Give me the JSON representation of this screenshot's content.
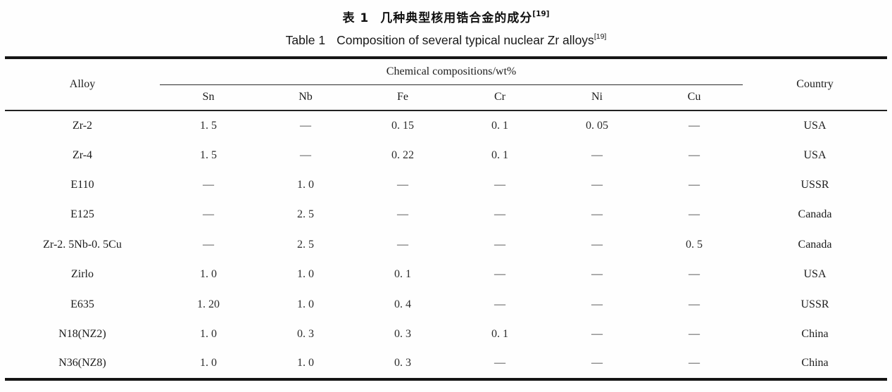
{
  "captions": {
    "chinese": {
      "label": "表 1",
      "text": "几种典型核用锆合金的成分",
      "sup": "[19]"
    },
    "english": {
      "label": "Table 1",
      "text": "Composition of several typical nuclear Zr alloys",
      "sup": "[19]"
    }
  },
  "table": {
    "header": {
      "alloy": "Alloy",
      "group": "Chemical compositions/wt%",
      "elements": [
        "Sn",
        "Nb",
        "Fe",
        "Cr",
        "Ni",
        "Cu"
      ],
      "country": "Country"
    },
    "rows": [
      {
        "alloy": "Zr-2",
        "values": [
          "1. 5",
          "—",
          "0. 15",
          "0. 1",
          "0. 05",
          "—"
        ],
        "country": "USA"
      },
      {
        "alloy": "Zr-4",
        "values": [
          "1. 5",
          "—",
          "0. 22",
          "0. 1",
          "—",
          "—"
        ],
        "country": "USA"
      },
      {
        "alloy": "E110",
        "values": [
          "—",
          "1. 0",
          "—",
          "—",
          "—",
          "—"
        ],
        "country": "USSR"
      },
      {
        "alloy": "E125",
        "values": [
          "—",
          "2. 5",
          "—",
          "—",
          "—",
          "—"
        ],
        "country": "Canada"
      },
      {
        "alloy": "Zr-2. 5Nb-0. 5Cu",
        "values": [
          "—",
          "2. 5",
          "—",
          "—",
          "—",
          "0. 5"
        ],
        "country": "Canada"
      },
      {
        "alloy": "Zirlo",
        "values": [
          "1. 0",
          "1. 0",
          "0. 1",
          "—",
          "—",
          "—"
        ],
        "country": "USA"
      },
      {
        "alloy": "E635",
        "values": [
          "1. 20",
          "1. 0",
          "0. 4",
          "—",
          "—",
          "—"
        ],
        "country": "USSR"
      },
      {
        "alloy": "N18(NZ2)",
        "values": [
          "1. 0",
          "0. 3",
          "0. 3",
          "0. 1",
          "—",
          "—"
        ],
        "country": "China"
      },
      {
        "alloy": "N36(NZ8)",
        "values": [
          "1. 0",
          "1. 0",
          "0. 3",
          "—",
          "—",
          "—"
        ],
        "country": "China"
      }
    ]
  }
}
